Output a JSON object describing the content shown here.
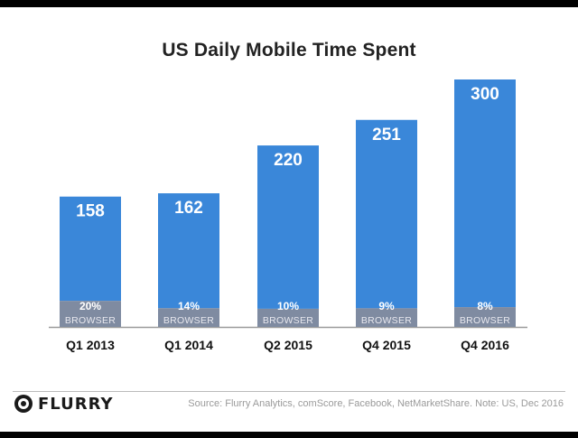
{
  "chart_data": {
    "type": "bar",
    "title": "US Daily Mobile Time Spent",
    "categories": [
      "Q1 2013",
      "Q1 2014",
      "Q2 2015",
      "Q4 2015",
      "Q4 2016"
    ],
    "values": [
      158,
      162,
      220,
      251,
      300
    ],
    "value_labels": [
      "158",
      "162",
      "220",
      "251",
      "300"
    ],
    "browser_share": [
      20,
      14,
      10,
      9,
      8
    ],
    "browser_share_labels": [
      "20%",
      "14%",
      "10%",
      "9%",
      "8%"
    ],
    "segment_label": "BROWSER",
    "colors": {
      "app": "#3a87d9",
      "browser": "#7f8ba1",
      "baseline": "#9a9a9a"
    }
  },
  "footer": {
    "logo_text": "FLURRY",
    "logo_icon": "flurry-logo-icon",
    "source": "Source: Flurry Analytics, comScore, Facebook, NetMarketShare. Note: US, Dec 2016"
  }
}
